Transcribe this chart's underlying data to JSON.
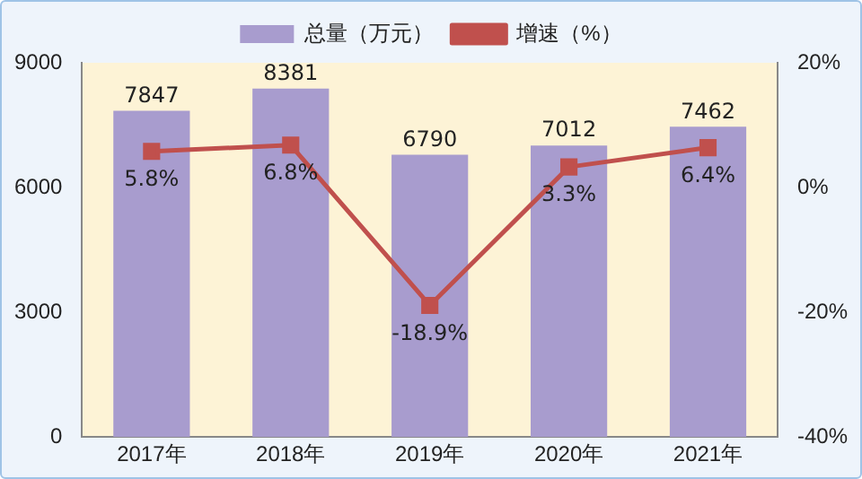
{
  "chart_data": {
    "type": "bar",
    "categories": [
      "2017年",
      "2018年",
      "2019年",
      "2020年",
      "2021年"
    ],
    "series": [
      {
        "name": "总量（万元）",
        "color": "#a89cce",
        "values": [
          7847,
          8381,
          6790,
          7012,
          7462
        ],
        "value_labels": [
          "7847",
          "8381",
          "6790",
          "7012",
          "7462"
        ]
      },
      {
        "name": "增速（%）",
        "type": "line",
        "axis": "y2",
        "color": "#c0504d",
        "values": [
          5.8,
          6.8,
          -18.9,
          3.3,
          6.4
        ],
        "value_labels": [
          "5.8%",
          "6.8%",
          "-18.9%",
          "3.3%",
          "6.4%"
        ]
      }
    ],
    "ylim": [
      0,
      9000
    ],
    "yticks": [
      0,
      3000,
      6000,
      9000
    ],
    "y2lim": [
      -40,
      20
    ],
    "y2ticks": [
      {
        "value": -40,
        "label": "-40%"
      },
      {
        "value": -20,
        "label": "-20%"
      },
      {
        "value": 0,
        "label": "0%"
      },
      {
        "value": 20,
        "label": "20%"
      }
    ],
    "grid": false,
    "legend": "top",
    "marker": "square",
    "line_style": "solid"
  }
}
